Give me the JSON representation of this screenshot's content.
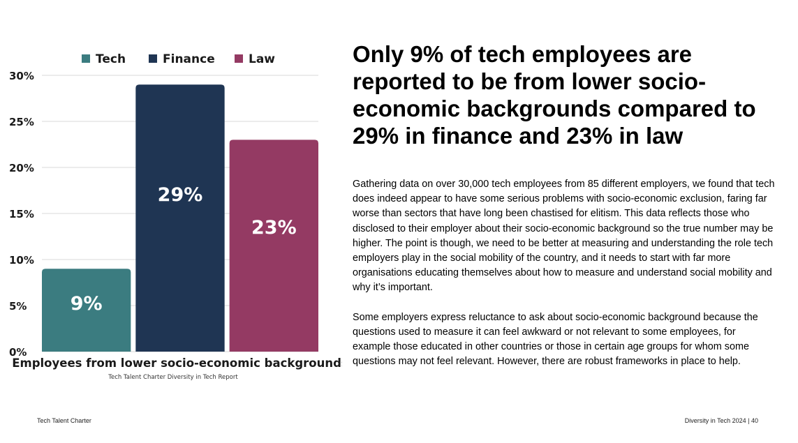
{
  "chart_data": {
    "type": "bar",
    "categories": [
      "Tech",
      "Finance",
      "Law"
    ],
    "values": [
      9,
      29,
      23
    ],
    "value_labels": [
      "9%",
      "29%",
      "23%"
    ],
    "colors": [
      "#3b7c80",
      "#1f3553",
      "#943a63"
    ],
    "legend": [
      "Tech",
      "Finance",
      "Law"
    ],
    "legend_position": "top",
    "yticks": [
      "0%",
      "5%",
      "10%",
      "15%",
      "20%",
      "25%",
      "30%"
    ],
    "ylim": [
      0,
      30
    ],
    "xlabel": "Employees from lower socio-economic backgrounds",
    "source": "Tech Talent Charter Diversity in Tech Report",
    "grid": true
  },
  "headline": "Only 9% of tech employees are reported to be from lower socio-economic backgrounds compared to 29% in finance and 23% in law",
  "paragraphs": [
    "Gathering data on over 30,000 tech employees from 85 different employers, we found that tech does indeed appear to have some serious problems with socio-economic exclusion, faring far worse than sectors that have long been chastised for elitism. This data reflects those who disclosed to their employer about their socio-economic background so the true number may be higher. The point is though, we need to be better at measuring and understanding the role tech employers play in the social mobility of the country, and it needs to start with far more organisations educating themselves about how to measure and understand social mobility and why it’s important.",
    "Some employers express reluctance to ask about socio-economic background because the questions used to measure it can feel awkward or not relevant to some employees, for example those educated in other countries or those in certain age groups for whom some questions may not feel relevant. However, there are robust frameworks in place to help."
  ],
  "footer": {
    "left": "Tech Talent Charter",
    "right": "Diversity in Tech 2024 | 40"
  }
}
